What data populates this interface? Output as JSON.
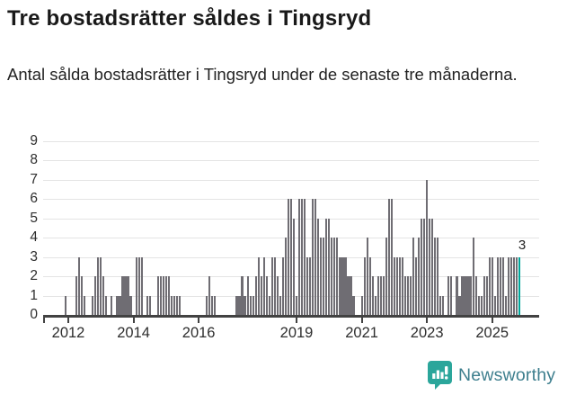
{
  "header": {
    "title": "Tre bostadsrätter såldes i Tingsryd",
    "subtitle": "Antal sålda bostadsrätter i Tingsryd under de senaste tre månaderna."
  },
  "chart_data": {
    "type": "bar",
    "title": "Tre bostadsrätter såldes i Tingsryd",
    "subtitle": "Antal sålda bostadsrätter i Tingsryd under de senaste tre månaderna.",
    "start_month": "2011-12",
    "end_month": "2025-11",
    "x_tick_labels": [
      "2012",
      "2014",
      "2016",
      "2019",
      "2021",
      "2023",
      "2025"
    ],
    "x_tick_years": [
      2012,
      2014,
      2016,
      2019,
      2021,
      2023,
      2025
    ],
    "y_ticks": [
      0,
      1,
      2,
      3,
      4,
      5,
      6,
      7,
      8,
      9
    ],
    "ylim": [
      0,
      9
    ],
    "grid": true,
    "bar_color": "#6f6d73",
    "series": [
      {
        "name": "Antal sålda bostadsrätter (rullande tre månader)",
        "values": [
          1,
          0,
          0,
          0,
          2,
          3,
          2,
          1,
          0,
          0,
          1,
          2,
          3,
          3,
          2,
          1,
          0,
          1,
          0,
          1,
          1,
          2,
          2,
          2,
          1,
          0,
          3,
          3,
          3,
          0,
          1,
          1,
          0,
          0,
          2,
          2,
          2,
          2,
          2,
          1,
          1,
          1,
          1,
          0,
          0,
          0,
          0,
          0,
          0,
          0,
          0,
          0,
          1,
          2,
          1,
          1,
          0,
          0,
          0,
          0,
          0,
          0,
          0,
          1,
          1,
          2,
          1,
          2,
          1,
          1,
          2,
          3,
          2,
          3,
          2,
          1,
          3,
          3,
          2,
          1,
          3,
          4,
          6,
          6,
          5,
          1,
          6,
          6,
          6,
          3,
          3,
          6,
          6,
          5,
          4,
          4,
          5,
          5,
          4,
          4,
          4,
          3,
          3,
          3,
          2,
          2,
          1,
          0,
          0,
          1,
          3,
          4,
          3,
          2,
          1,
          2,
          2,
          2,
          4,
          6,
          6,
          3,
          3,
          3,
          3,
          2,
          2,
          2,
          4,
          3,
          4,
          5,
          5,
          7,
          5,
          5,
          4,
          4,
          1,
          1,
          0,
          2,
          2,
          0,
          2,
          1,
          2,
          2,
          2,
          2,
          4,
          2,
          1,
          1,
          2,
          2,
          3,
          3,
          1,
          3,
          3,
          3,
          1,
          3,
          3,
          3,
          3,
          3
        ]
      }
    ],
    "highlight": {
      "index": 167,
      "value": 3,
      "label": "3",
      "color": "#00a69b"
    }
  },
  "footer": {
    "brand": "Newsworthy"
  },
  "colors": {
    "bar": "#6f6d73",
    "highlight": "#00a69b",
    "grid": "#e4e4e4",
    "axis": "#424242",
    "logo_icon": "#2ba69b",
    "logo_text": "#3e7f8e"
  }
}
